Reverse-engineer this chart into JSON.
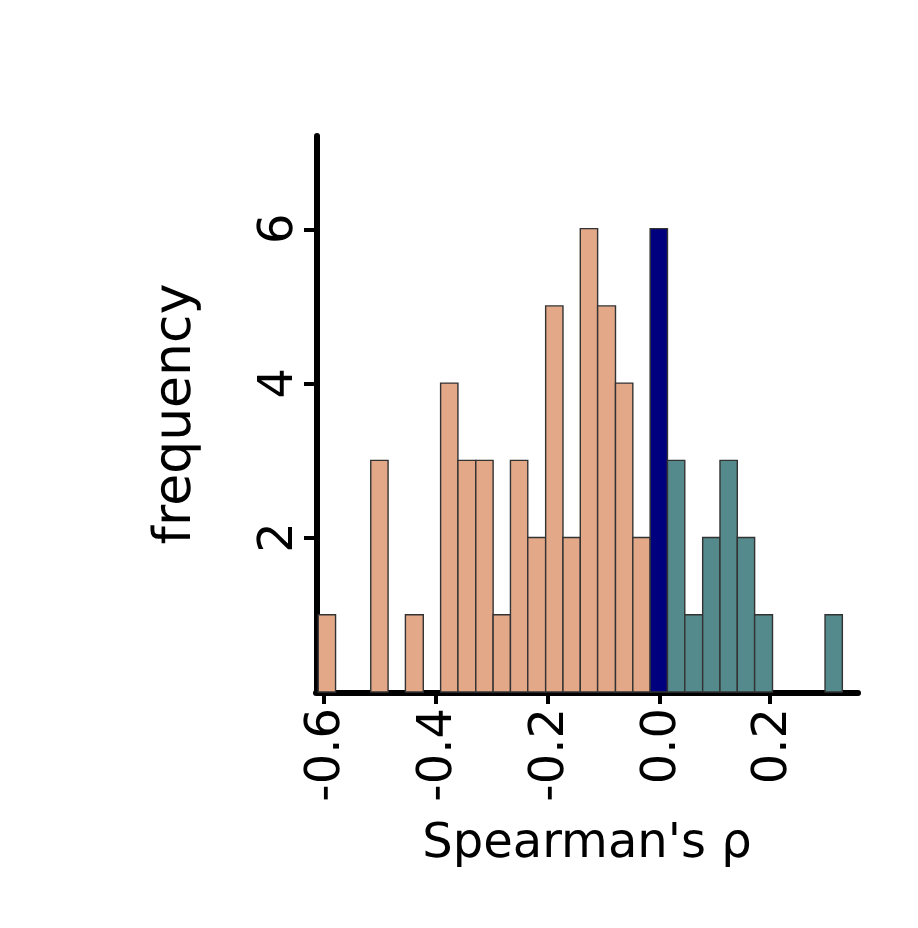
{
  "chart_data": {
    "type": "histogram",
    "xlabel": "Spearman's ρ",
    "ylabel": "frequency",
    "bins": [
      -0.609,
      -0.578,
      -0.515,
      -0.484,
      -0.453,
      -0.421,
      -0.39,
      -0.359,
      -0.327,
      -0.296,
      -0.265,
      -0.234,
      -0.202,
      -0.171,
      -0.14,
      -0.109,
      -0.077,
      -0.046,
      -0.015,
      0.016,
      0.047,
      0.079,
      0.11,
      0.141,
      0.172,
      0.204,
      0.298,
      0.329
    ],
    "values": [
      1,
      0,
      3,
      0,
      1,
      0,
      4,
      3,
      3,
      1,
      3,
      2,
      5,
      2,
      6,
      5,
      4,
      2,
      6,
      3,
      1,
      2,
      3,
      2,
      1,
      0,
      1
    ],
    "colors": [
      "#e3a888",
      null,
      "#e3a888",
      null,
      "#e3a888",
      null,
      "#e3a888",
      "#e3a888",
      "#e3a888",
      "#e3a888",
      "#e3a888",
      "#e3a888",
      "#e3a888",
      "#e3a888",
      "#e3a888",
      "#e3a888",
      "#e3a888",
      "#e3a888",
      "#00007f",
      "#548a8c",
      "#548a8c",
      "#548a8c",
      "#548a8c",
      "#548a8c",
      "#548a8c",
      null,
      "#548a8c"
    ],
    "xlim": [
      -0.613,
      0.357
    ],
    "xticks": [
      -0.6,
      -0.4,
      -0.2,
      {
        "value": 0,
        "label": "0.0"
      },
      0.2
    ],
    "ylim": [
      0,
      7.2
    ],
    "yticks": [
      2,
      4,
      6
    ],
    "grid": false
  }
}
